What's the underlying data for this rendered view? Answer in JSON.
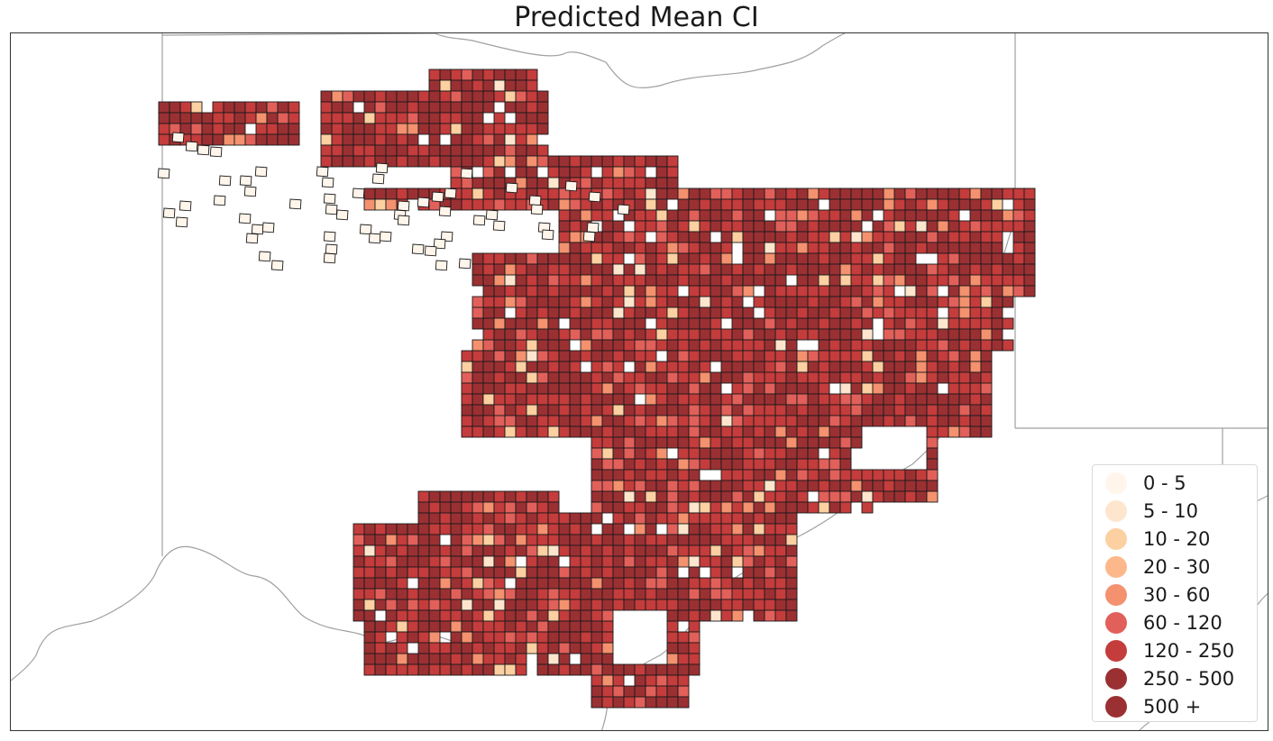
{
  "title": "Predicted Mean CI",
  "legend": {
    "items": [
      {
        "label": "0 - 5",
        "color": "#fff5eb"
      },
      {
        "label": "5 - 10",
        "color": "#fee6ce"
      },
      {
        "label": "10 - 20",
        "color": "#fdd0a2"
      },
      {
        "label": "20 - 30",
        "color": "#fcb88a"
      },
      {
        "label": "30 - 60",
        "color": "#f4916e"
      },
      {
        "label": "60 - 120",
        "color": "#e2605a"
      },
      {
        "label": "120 - 250",
        "color": "#c43c3c"
      },
      {
        "label": "250 - 500",
        "color": "#9b3033"
      },
      {
        "label": "500 +",
        "color": "#9b3033"
      }
    ]
  },
  "colors": {
    "boundary": "#a0a0a0",
    "cell_stroke": "#1a1a1a",
    "frame": "#333333"
  }
}
